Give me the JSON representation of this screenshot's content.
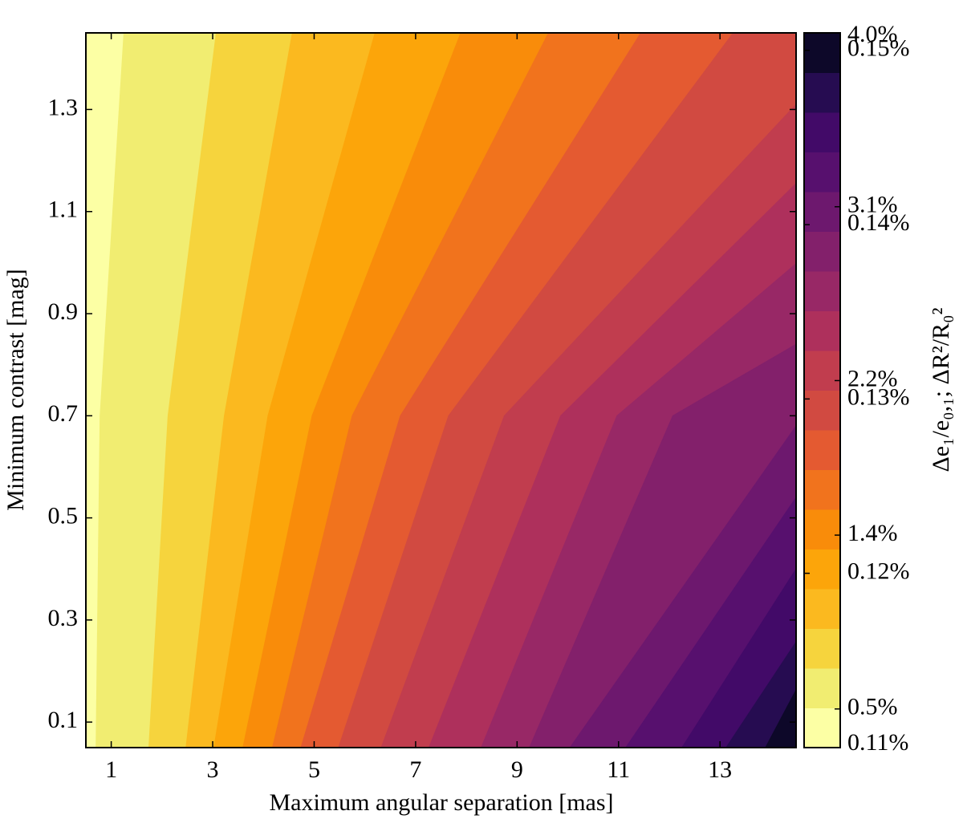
{
  "chart_data": {
    "type": "contour",
    "x_label": "Maximum angular separation [mas]",
    "y_label": "Minimum contrast [mag]",
    "xlim": [
      0.5,
      14.5
    ],
    "ylim": [
      0.05,
      1.45
    ],
    "xticks": [
      1,
      3,
      5,
      7,
      9,
      11,
      13
    ],
    "yticks": [
      0.1,
      0.3,
      0.5,
      0.7,
      0.9,
      1.1,
      1.3
    ],
    "band_colors": [
      "#fcffa4",
      "#f1ed71",
      "#f6d43d",
      "#fbb91f",
      "#fca50a",
      "#f98c0a",
      "#f1731d",
      "#e45a31",
      "#d14a41",
      "#c13d4e",
      "#ae305c",
      "#982866",
      "#83206b",
      "#6d186e",
      "#57106e",
      "#420a68",
      "#260c51",
      "#0d0829"
    ],
    "boundaries": [
      [
        [
          0.7,
          0.05
        ],
        [
          0.78,
          0.7
        ],
        [
          1.25,
          1.45
        ]
      ],
      [
        [
          1.74,
          0.05
        ],
        [
          2.12,
          0.7
        ],
        [
          3.07,
          1.45
        ]
      ],
      [
        [
          2.47,
          0.05
        ],
        [
          3.23,
          0.7
        ],
        [
          4.57,
          1.45
        ]
      ],
      [
        [
          3.02,
          0.05
        ],
        [
          4.09,
          0.7
        ],
        [
          6.2,
          1.45
        ]
      ],
      [
        [
          3.59,
          0.05
        ],
        [
          4.96,
          0.7
        ],
        [
          7.89,
          1.45
        ]
      ],
      [
        [
          4.17,
          0.05
        ],
        [
          5.75,
          0.7
        ],
        [
          9.62,
          1.45
        ]
      ],
      [
        [
          4.73,
          0.05
        ],
        [
          6.7,
          0.7
        ],
        [
          11.44,
          1.45
        ]
      ],
      [
        [
          5.47,
          0.05
        ],
        [
          7.65,
          0.7
        ],
        [
          13.26,
          1.45
        ]
      ],
      [
        [
          6.31,
          0.05
        ],
        [
          8.75,
          0.7
        ],
        [
          14.5,
          1.31
        ]
      ],
      [
        [
          7.25,
          0.05
        ],
        [
          9.86,
          0.7
        ],
        [
          14.5,
          1.155
        ]
      ],
      [
        [
          8.28,
          0.05
        ],
        [
          10.97,
          0.7
        ],
        [
          14.5,
          0.998
        ]
      ],
      [
        [
          9.23,
          0.05
        ],
        [
          12.07,
          0.7
        ],
        [
          14.5,
          0.84
        ]
      ],
      [
        [
          10.02,
          0.05
        ],
        [
          14.5,
          0.68
        ]
      ],
      [
        [
          11.12,
          0.05
        ],
        [
          14.5,
          0.54
        ]
      ],
      [
        [
          12.23,
          0.05
        ],
        [
          14.5,
          0.4
        ]
      ],
      [
        [
          13.1,
          0.05
        ],
        [
          14.5,
          0.257
        ]
      ],
      [
        [
          13.88,
          0.05
        ],
        [
          14.5,
          0.163
        ]
      ]
    ],
    "colorbar": {
      "label": "Δe₁/e₀,₁; ΔR²/R₀²",
      "clim_e": [
        0.3,
        4.0
      ],
      "ticks_e": [
        {
          "value": 4.0,
          "label": "4.0%"
        },
        {
          "value": 3.1,
          "label": "3.1%"
        },
        {
          "value": 2.2,
          "label": "2.2%"
        },
        {
          "value": 1.4,
          "label": "1.4%"
        },
        {
          "value": 0.5,
          "label": "0.5%"
        }
      ],
      "clim_R": [
        0.11,
        0.151
      ],
      "ticks_R": [
        {
          "value": 0.15,
          "label": "0.15%"
        },
        {
          "value": 0.14,
          "label": "0.14%"
        },
        {
          "value": 0.13,
          "label": "0.13%"
        },
        {
          "value": 0.12,
          "label": "0.12%"
        },
        {
          "value": 0.11,
          "label": "0.11%"
        }
      ]
    }
  }
}
